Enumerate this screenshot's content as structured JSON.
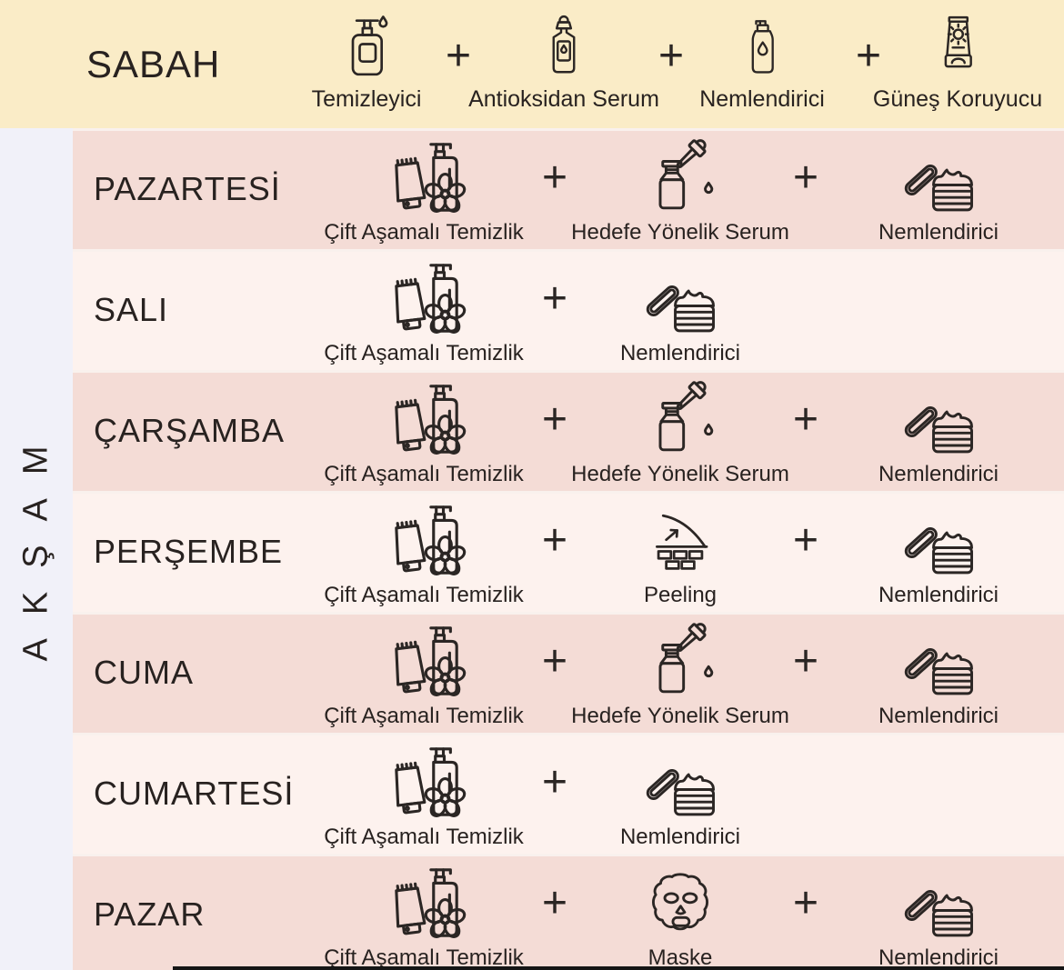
{
  "morning": {
    "title": "SABAH",
    "steps": [
      {
        "label": "Temizleyici",
        "icon": "pump-bottle-icon"
      },
      {
        "label": "Antioksidan Serum",
        "icon": "dropper-bottle-icon"
      },
      {
        "label": "Nemlendirici",
        "icon": "lotion-bottle-icon"
      },
      {
        "label": "Güneş Koruyucu",
        "icon": "sunscreen-tube-icon"
      }
    ]
  },
  "evening": {
    "title": "AKŞAM"
  },
  "plus": "+",
  "days": [
    {
      "name": "PAZARTESİ",
      "steps": [
        {
          "label": "Çift Aşamalı Temizlik",
          "icon": "double-cleanse-icon"
        },
        {
          "label": "Hedefe Yönelik Serum",
          "icon": "serum-dropper-icon"
        },
        {
          "label": "Nemlendirici",
          "icon": "cream-jar-icon"
        }
      ]
    },
    {
      "name": "SALI",
      "steps": [
        {
          "label": "Çift Aşamalı Temizlik",
          "icon": "double-cleanse-icon"
        },
        {
          "label": "Nemlendirici",
          "icon": "cream-jar-icon"
        }
      ]
    },
    {
      "name": "ÇARŞAMBA",
      "steps": [
        {
          "label": "Çift Aşamalı Temizlik",
          "icon": "double-cleanse-icon"
        },
        {
          "label": "Hedefe Yönelik Serum",
          "icon": "serum-dropper-icon"
        },
        {
          "label": "Nemlendirici",
          "icon": "cream-jar-icon"
        }
      ]
    },
    {
      "name": "PERŞEMBE",
      "steps": [
        {
          "label": "Çift Aşamalı Temizlik",
          "icon": "double-cleanse-icon"
        },
        {
          "label": "Peeling",
          "icon": "peeling-icon"
        },
        {
          "label": "Nemlendirici",
          "icon": "cream-jar-icon"
        }
      ]
    },
    {
      "name": "CUMA",
      "steps": [
        {
          "label": "Çift Aşamalı Temizlik",
          "icon": "double-cleanse-icon"
        },
        {
          "label": "Hedefe Yönelik Serum",
          "icon": "serum-dropper-icon"
        },
        {
          "label": "Nemlendirici",
          "icon": "cream-jar-icon"
        }
      ]
    },
    {
      "name": "CUMARTESİ",
      "steps": [
        {
          "label": "Çift Aşamalı Temizlik",
          "icon": "double-cleanse-icon"
        },
        {
          "label": "Nemlendirici",
          "icon": "cream-jar-icon"
        }
      ]
    },
    {
      "name": "PAZAR",
      "steps": [
        {
          "label": "Çift Aşamalı Temizlik",
          "icon": "double-cleanse-icon"
        },
        {
          "label": "Maske",
          "icon": "sheet-mask-icon"
        },
        {
          "label": "Nemlendirici",
          "icon": "cream-jar-icon"
        }
      ]
    }
  ],
  "colors": {
    "header_bg": "#faecc7",
    "row_dark": "#f4dcd6",
    "row_light": "#fdf2ee",
    "sidebar_bg": "#f1f1f9",
    "text": "#282220"
  }
}
